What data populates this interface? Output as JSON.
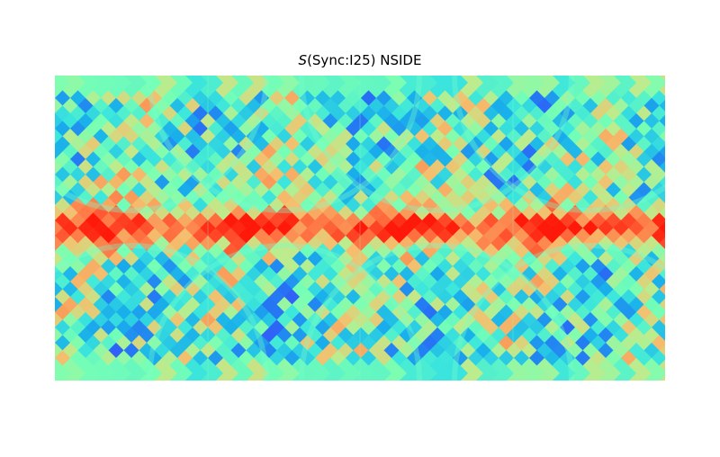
{
  "chart_data": {
    "type": "heatmap",
    "title_symbol": "S",
    "title_rest": "(Sync:I25) NSIDE",
    "projection": "cartesian (equirectangular) full-sky HEALPix map",
    "colormap": "rainbow",
    "colorbar": false,
    "axes_visible": false,
    "grid": false,
    "description_of_values": "pixel-wise score; highest values concentrated along the central (galactic-plane) band, lowest values in scattered blue patches near the poles"
  }
}
